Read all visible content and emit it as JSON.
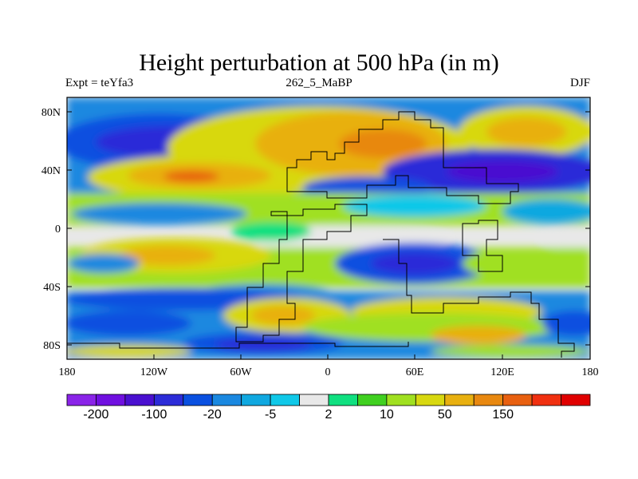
{
  "title": "Height perturbation at 500 hPa (in m)",
  "subtitle_left": "Expt = teYfa3",
  "subtitle_center": "262_5_MaBP",
  "subtitle_right": "DJF",
  "lat_ticks": [
    "80N",
    "40N",
    "0",
    "40S",
    "80S"
  ],
  "lon_ticks": [
    "180",
    "120W",
    "60W",
    "0",
    "60E",
    "120E",
    "180"
  ],
  "colorbar": {
    "colors": [
      "#8a24e8",
      "#7010e0",
      "#4a10d0",
      "#2c2cd8",
      "#0a50e0",
      "#1a88e0",
      "#10a8e0",
      "#10c8e8",
      "#e8e8e8",
      "#10e080",
      "#40d020",
      "#a0e020",
      "#d8d810",
      "#e8b010",
      "#e88810",
      "#e86010",
      "#f03010",
      "#e00000"
    ],
    "labels": [
      "-200",
      "-100",
      "-20",
      "-5",
      "2",
      "10",
      "50",
      "150"
    ]
  }
}
